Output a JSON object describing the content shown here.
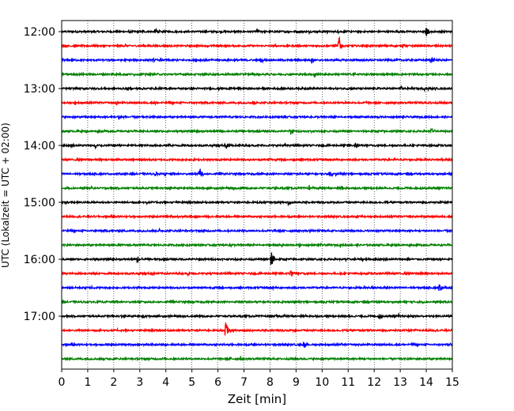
{
  "chart_data": {
    "type": "line",
    "title": "",
    "xlabel": "Zeit  [min]",
    "ylabel": "UTC (Lokalzeit = UTC + 02:00)",
    "xlim": [
      0,
      15
    ],
    "x_ticks": [
      "0",
      "1",
      "2",
      "3",
      "4",
      "5",
      "6",
      "7",
      "8",
      "9",
      "10",
      "11",
      "12",
      "13",
      "14",
      "15"
    ],
    "y_tick_labels": [
      "12:00",
      "13:00",
      "14:00",
      "15:00",
      "16:00",
      "17:00"
    ],
    "x_grid": "dotted vertical lines at each minute",
    "trace_colors": [
      "#000000",
      "#ff0000",
      "#0000ff",
      "#008000"
    ],
    "trace_minutes": 15,
    "traces": [
      {
        "label": "12:00",
        "color": "#000000",
        "events": [
          {
            "t": 3.6,
            "amp": 0.35
          },
          {
            "t": 14.0,
            "amp": 0.35
          },
          {
            "t": 7.5,
            "amp": 0.25
          }
        ]
      },
      {
        "label": "12:15",
        "color": "#ff0000",
        "events": [
          {
            "t": 10.65,
            "amp": 0.7
          },
          {
            "t": 13.1,
            "amp": 0.2
          }
        ]
      },
      {
        "label": "12:30",
        "color": "#0000ff",
        "events": [
          {
            "t": 9.6,
            "amp": 0.25
          },
          {
            "t": 14.2,
            "amp": 0.25
          }
        ]
      },
      {
        "label": "12:45",
        "color": "#008000",
        "events": [
          {
            "t": 9.7,
            "amp": 0.35
          },
          {
            "t": 11.2,
            "amp": 0.25
          }
        ]
      },
      {
        "label": "13:00",
        "color": "#000000",
        "events": [
          {
            "t": 13.0,
            "amp": 0.2
          }
        ]
      },
      {
        "label": "13:15",
        "color": "#ff0000",
        "events": [
          {
            "t": 7.4,
            "amp": 0.15
          }
        ]
      },
      {
        "label": "13:30",
        "color": "#0000ff",
        "events": [
          {
            "t": 2.2,
            "amp": 0.2
          }
        ]
      },
      {
        "label": "13:45",
        "color": "#008000",
        "events": [
          {
            "t": 8.8,
            "amp": 0.35
          },
          {
            "t": 14.2,
            "amp": 0.25
          }
        ]
      },
      {
        "label": "14:00",
        "color": "#000000",
        "events": [
          {
            "t": 6.3,
            "amp": 0.35
          },
          {
            "t": 11.3,
            "amp": 0.3
          },
          {
            "t": 1.3,
            "amp": 0.25
          }
        ]
      },
      {
        "label": "14:15",
        "color": "#ff0000",
        "events": [
          {
            "t": 8.0,
            "amp": 0.2
          }
        ]
      },
      {
        "label": "14:30",
        "color": "#0000ff",
        "events": [
          {
            "t": 5.3,
            "amp": 0.55
          },
          {
            "t": 10.3,
            "amp": 0.25
          },
          {
            "t": 3.6,
            "amp": 0.2
          }
        ]
      },
      {
        "label": "14:45",
        "color": "#008000",
        "events": [
          {
            "t": 9.5,
            "amp": 0.25
          },
          {
            "t": 6.6,
            "amp": 0.2
          }
        ]
      },
      {
        "label": "15:00",
        "color": "#000000",
        "events": [
          {
            "t": 0.15,
            "amp": 0.25
          },
          {
            "t": 8.7,
            "amp": 0.25
          }
        ]
      },
      {
        "label": "15:15",
        "color": "#ff0000",
        "events": []
      },
      {
        "label": "15:30",
        "color": "#0000ff",
        "events": []
      },
      {
        "label": "15:45",
        "color": "#008000",
        "events": []
      },
      {
        "label": "16:00",
        "color": "#000000",
        "events": [
          {
            "t": 8.05,
            "amp": 0.9
          },
          {
            "t": 2.9,
            "amp": 0.25
          }
        ]
      },
      {
        "label": "16:15",
        "color": "#ff0000",
        "events": [
          {
            "t": 8.8,
            "amp": 0.4
          }
        ]
      },
      {
        "label": "16:30",
        "color": "#0000ff",
        "events": [
          {
            "t": 14.5,
            "amp": 0.3
          }
        ]
      },
      {
        "label": "16:45",
        "color": "#008000",
        "events": []
      },
      {
        "label": "17:00",
        "color": "#000000",
        "events": [
          {
            "t": 12.2,
            "amp": 0.3
          },
          {
            "t": 3.1,
            "amp": 0.2
          }
        ]
      },
      {
        "label": "17:15",
        "color": "#ff0000",
        "events": [
          {
            "t": 6.3,
            "amp": 0.85
          }
        ]
      },
      {
        "label": "17:30",
        "color": "#0000ff",
        "events": [
          {
            "t": 9.3,
            "amp": 0.25
          },
          {
            "t": 3.8,
            "amp": 0.15
          }
        ]
      },
      {
        "label": "17:45",
        "color": "#008000",
        "events": []
      }
    ]
  }
}
